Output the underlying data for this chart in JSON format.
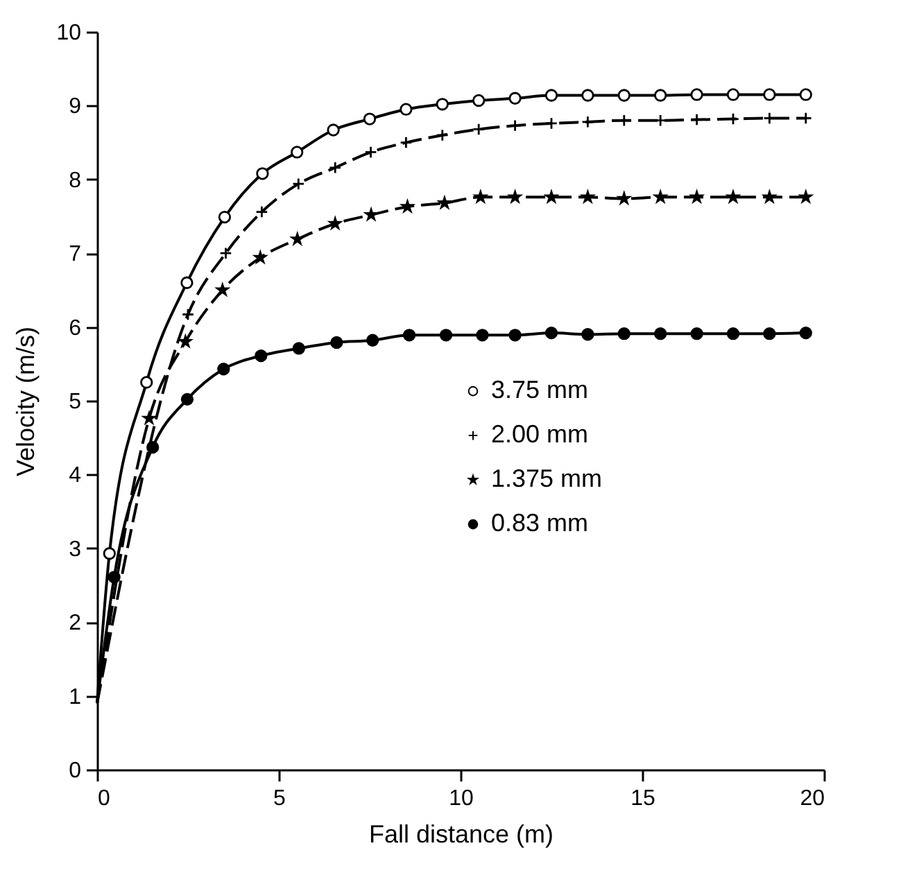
{
  "chart_data": {
    "type": "scatter",
    "xlabel": "Fall distance (m)",
    "ylabel": "Velocity (m/s)",
    "xlim": [
      0,
      20
    ],
    "xticks": [
      0,
      5,
      10,
      15,
      20
    ],
    "ylim": [
      0,
      10
    ],
    "yticks": [
      0,
      1,
      2,
      3,
      4,
      5,
      6,
      7,
      8,
      9,
      10
    ],
    "grid": false,
    "legend": "right",
    "series": [
      {
        "name": "3.75 mm",
        "marker": "circle",
        "color": "#ffffff",
        "x": [
          0.34,
          1.36,
          2.47,
          3.51,
          4.55,
          5.5,
          6.5,
          7.5,
          8.5,
          9.5,
          10.5,
          11.5,
          12.5,
          13.5,
          14.5,
          15.5,
          16.5,
          17.5,
          18.5,
          19.5
        ],
        "values": [
          2.93,
          5.25,
          6.6,
          7.49,
          8.08,
          8.37,
          8.67,
          8.82,
          8.95,
          9.02,
          9.07,
          9.1,
          9.14,
          9.14,
          9.14,
          9.14,
          9.15,
          9.15,
          9.15,
          9.15
        ]
      },
      {
        "name": "2.00 mm",
        "marker": "cross",
        "color": "#000000",
        "x": [
          2.5,
          3.54,
          4.53,
          5.54,
          6.55,
          7.53,
          8.5,
          9.5,
          10.5,
          11.5,
          12.5,
          13.5,
          14.5,
          15.5,
          16.5,
          17.5,
          18.5,
          19.5
        ],
        "values": [
          6.17,
          7.0,
          7.56,
          7.94,
          8.16,
          8.37,
          8.5,
          8.6,
          8.68,
          8.73,
          8.76,
          8.78,
          8.8,
          8.8,
          8.81,
          8.82,
          8.83,
          8.83
        ]
      },
      {
        "name": "1.375 mm",
        "marker": "star",
        "color": "#000000",
        "x": [
          1.43,
          2.43,
          3.45,
          4.49,
          5.51,
          6.55,
          7.54,
          8.54,
          9.56,
          10.55,
          11.5,
          12.5,
          13.5,
          14.5,
          15.5,
          16.5,
          17.5,
          18.5,
          19.5
        ],
        "values": [
          4.76,
          5.8,
          6.5,
          6.94,
          7.19,
          7.4,
          7.52,
          7.63,
          7.68,
          7.76,
          7.76,
          7.76,
          7.76,
          7.74,
          7.76,
          7.76,
          7.76,
          7.76,
          7.76
        ]
      },
      {
        "name": "0.83 mm",
        "marker": "circle",
        "color": "#000000",
        "x": [
          0.47,
          1.53,
          2.48,
          3.48,
          4.51,
          5.55,
          6.59,
          7.58,
          8.59,
          9.6,
          10.6,
          11.5,
          12.5,
          13.5,
          14.5,
          15.5,
          16.5,
          17.5,
          18.5,
          19.5
        ],
        "values": [
          2.61,
          4.37,
          5.02,
          5.43,
          5.61,
          5.71,
          5.79,
          5.82,
          5.89,
          5.89,
          5.89,
          5.89,
          5.92,
          5.9,
          5.91,
          5.91,
          5.91,
          5.91,
          5.91,
          5.92
        ]
      },
      {
        "type": "line",
        "line_style": "solid",
        "color": "#000000",
        "x": [
          0,
          0.34,
          1.36,
          2.47,
          3.51,
          4.55,
          5.5,
          6.5,
          7.5,
          8.5,
          9.5,
          10.5,
          11.5,
          12.5,
          13.5,
          14.5,
          15.5,
          16.5,
          17.5,
          18.5,
          19.5
        ],
        "values": [
          0.9,
          2.93,
          5.25,
          6.6,
          7.49,
          8.08,
          8.37,
          8.67,
          8.82,
          8.95,
          9.02,
          9.07,
          9.1,
          9.14,
          9.14,
          9.14,
          9.14,
          9.15,
          9.15,
          9.15,
          9.15
        ]
      },
      {
        "type": "line",
        "line_style": "dashed",
        "color": "#000000",
        "x": [
          0,
          2.5,
          3.54,
          4.53,
          5.54,
          6.55,
          7.53,
          8.5,
          9.5,
          10.5,
          11.5,
          12.5,
          13.5,
          14.5,
          15.5,
          16.5,
          17.5,
          18.5,
          19.5
        ],
        "values": [
          0.9,
          6.17,
          7.0,
          7.56,
          7.94,
          8.16,
          8.37,
          8.5,
          8.6,
          8.68,
          8.73,
          8.76,
          8.78,
          8.8,
          8.8,
          8.81,
          8.82,
          8.83,
          8.83
        ]
      },
      {
        "type": "line",
        "line_style": "dashed",
        "color": "#000000",
        "x": [
          0,
          1.43,
          2.43,
          3.45,
          4.49,
          5.51,
          6.55,
          7.54,
          8.54,
          9.56,
          10.55,
          11.5,
          12.5,
          13.5,
          14.5,
          15.5,
          16.5,
          17.5,
          18.5,
          19.5
        ],
        "values": [
          0.9,
          4.76,
          5.8,
          6.5,
          6.94,
          7.19,
          7.4,
          7.52,
          7.63,
          7.68,
          7.76,
          7.76,
          7.76,
          7.76,
          7.74,
          7.76,
          7.76,
          7.76,
          7.76,
          7.76
        ]
      },
      {
        "type": "line",
        "line_style": "solid",
        "color": "#000000",
        "x": [
          0,
          0.47,
          1.53,
          2.48,
          3.48,
          4.51,
          5.55,
          6.59,
          7.58,
          8.59,
          9.6,
          10.6,
          11.5,
          12.5,
          13.5,
          14.5,
          15.5,
          16.5,
          17.5,
          18.5,
          19.5
        ],
        "values": [
          0.9,
          2.61,
          4.37,
          5.02,
          5.43,
          5.61,
          5.71,
          5.79,
          5.82,
          5.89,
          5.89,
          5.89,
          5.89,
          5.92,
          5.9,
          5.91,
          5.91,
          5.91,
          5.91,
          5.91,
          5.92
        ]
      }
    ]
  }
}
